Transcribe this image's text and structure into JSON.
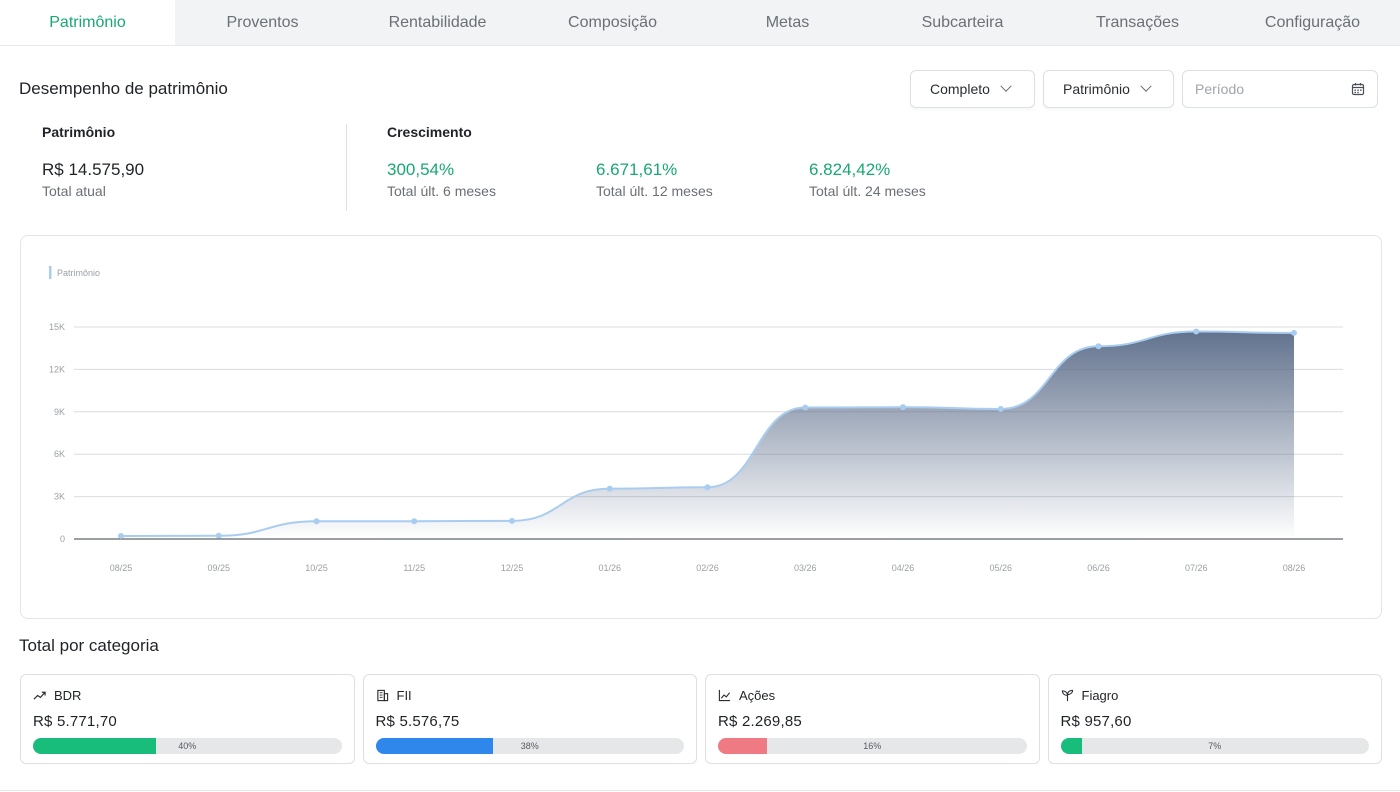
{
  "tabs": [
    {
      "label": "Patrimônio",
      "active": true
    },
    {
      "label": "Proventos"
    },
    {
      "label": "Rentabilidade"
    },
    {
      "label": "Composição"
    },
    {
      "label": "Metas"
    },
    {
      "label": "Subcarteira"
    },
    {
      "label": "Transações"
    },
    {
      "label": "Configuração"
    }
  ],
  "header": {
    "title": "Desempenho de patrimônio",
    "scope_select": "Completo",
    "metric_select": "Patrimônio",
    "period_placeholder": "Período"
  },
  "summary": {
    "patrimonio_label": "Patrimônio",
    "patrimonio_value": "R$ 14.575,90",
    "patrimonio_sub": "Total atual",
    "growth_label": "Crescimento",
    "growth": [
      {
        "value": "300,54%",
        "sub": "Total últ. 6 meses"
      },
      {
        "value": "6.671,61%",
        "sub": "Total últ. 12 meses"
      },
      {
        "value": "6.824,42%",
        "sub": "Total últ. 24 meses"
      }
    ]
  },
  "chart_data": {
    "type": "area",
    "legend": "Patrimônio",
    "x": [
      "08/25",
      "09/25",
      "10/25",
      "11/25",
      "12/25",
      "01/26",
      "02/26",
      "03/26",
      "04/26",
      "05/26",
      "06/26",
      "07/26",
      "08/26"
    ],
    "series": [
      {
        "name": "Patrimônio",
        "values": [
          210,
          230,
          1260,
          1260,
          1280,
          3560,
          3660,
          9300,
          9330,
          9200,
          13640,
          14680,
          14580
        ]
      }
    ],
    "y_ticks": [
      "0",
      "3K",
      "6K",
      "9K",
      "12K",
      "15K"
    ],
    "ylim": [
      0,
      15000
    ],
    "grid": true,
    "colors": {
      "line": "#a9cdf0",
      "area_top": "#5a6b88"
    }
  },
  "categories_title": "Total por categoria",
  "categories": [
    {
      "name": "BDR",
      "value": "R$ 5.771,70",
      "percent": 40,
      "percent_label": "40%",
      "color": "#18bd7c",
      "icon": "trending-up-icon"
    },
    {
      "name": "FII",
      "value": "R$ 5.576,75",
      "percent": 38,
      "percent_label": "38%",
      "color": "#2f86eb",
      "icon": "building-icon"
    },
    {
      "name": "Ações",
      "value": "R$ 2.269,85",
      "percent": 16,
      "percent_label": "16%",
      "color": "#f07a84",
      "icon": "line-chart-icon"
    },
    {
      "name": "Fiagro",
      "value": "R$ 957,60",
      "percent": 7,
      "percent_label": "7%",
      "color": "#18bd7c",
      "icon": "sprout-icon"
    }
  ]
}
